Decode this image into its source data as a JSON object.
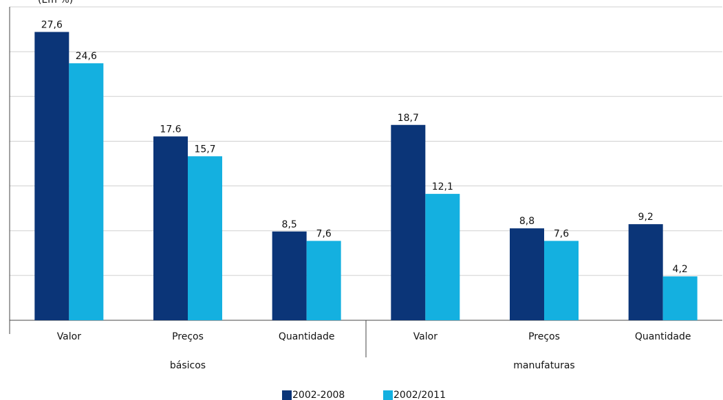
{
  "chart_data": {
    "type": "bar",
    "subtitle": "(Em %)",
    "categories": [
      "Valor",
      "Preços",
      "Quantidade",
      "Valor",
      "Preços",
      "Quantidade"
    ],
    "group_labels": [
      "básicos",
      "manufaturas"
    ],
    "series": [
      {
        "name": "2002-2008",
        "color": "#0b3578",
        "values": [
          27.6,
          17.6,
          8.5,
          18.7,
          8.8,
          9.2
        ],
        "value_labels": [
          "27,6",
          "17.6",
          "8,5",
          "18,7",
          "8,8",
          "9,2"
        ]
      },
      {
        "name": "2002/2011",
        "color": "#14b0e0",
        "values": [
          24.6,
          15.7,
          7.6,
          12.1,
          7.6,
          4.2
        ],
        "value_labels": [
          "24,6",
          "15,7",
          "7,6",
          "12,1",
          "7,6",
          "4,2"
        ]
      }
    ],
    "ylim": [
      0,
      30
    ],
    "yticks": [
      0,
      4.29,
      8.57,
      12.86,
      17.14,
      21.43,
      25.71,
      30
    ],
    "grid": true
  }
}
